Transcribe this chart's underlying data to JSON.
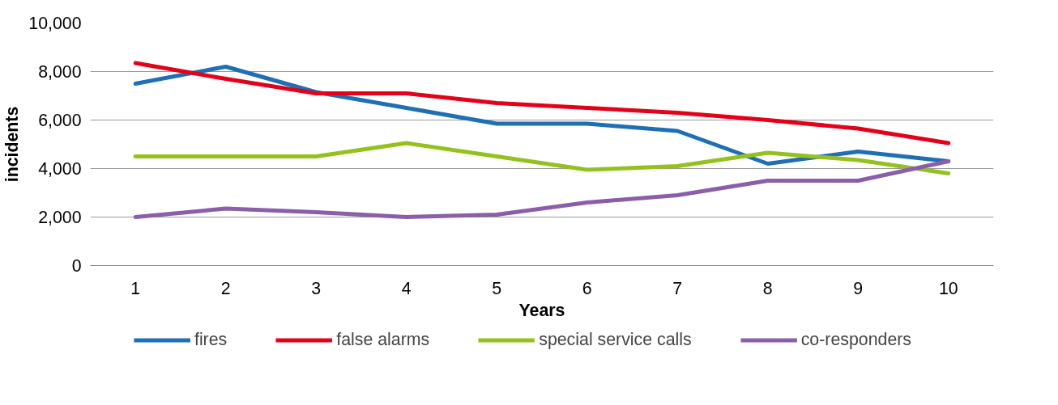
{
  "chart_data": {
    "type": "line",
    "xlabel": "Years",
    "ylabel": "incidents",
    "x": [
      1,
      2,
      3,
      4,
      5,
      6,
      7,
      8,
      9,
      10
    ],
    "xlim": [
      0.5,
      10.5
    ],
    "xticks": [
      1,
      2,
      3,
      4,
      5,
      6,
      7,
      8,
      9,
      10
    ],
    "ylim": [
      0,
      10000
    ],
    "yticks": [
      {
        "value": 0,
        "label": "0"
      },
      {
        "value": 2000,
        "label": "2,000"
      },
      {
        "value": 4000,
        "label": "4,000"
      },
      {
        "value": 6000,
        "label": "6,000"
      },
      {
        "value": 8000,
        "label": "8,000"
      },
      {
        "value": 10000,
        "label": "10,000"
      }
    ],
    "grid": "y",
    "legend": "bottom",
    "marker": "none",
    "line_style": "solid",
    "series": [
      {
        "name": "fires",
        "color": "#1f6fb2",
        "values": [
          7500,
          8200,
          7150,
          6500,
          5850,
          5850,
          5550,
          4200,
          4700,
          4300
        ]
      },
      {
        "name": "false alarms",
        "color": "#e2001a",
        "values": [
          8350,
          7700,
          7100,
          7100,
          6700,
          6500,
          6300,
          6000,
          5650,
          5050
        ]
      },
      {
        "name": "special service calls",
        "color": "#95c11f",
        "values": [
          4500,
          4500,
          4500,
          5050,
          4500,
          3950,
          4100,
          4650,
          4350,
          3800
        ]
      },
      {
        "name": "co-responders",
        "color": "#8a5ea8",
        "values": [
          2000,
          2350,
          2200,
          2000,
          2100,
          2600,
          2900,
          3500,
          3500,
          4300
        ]
      }
    ]
  }
}
